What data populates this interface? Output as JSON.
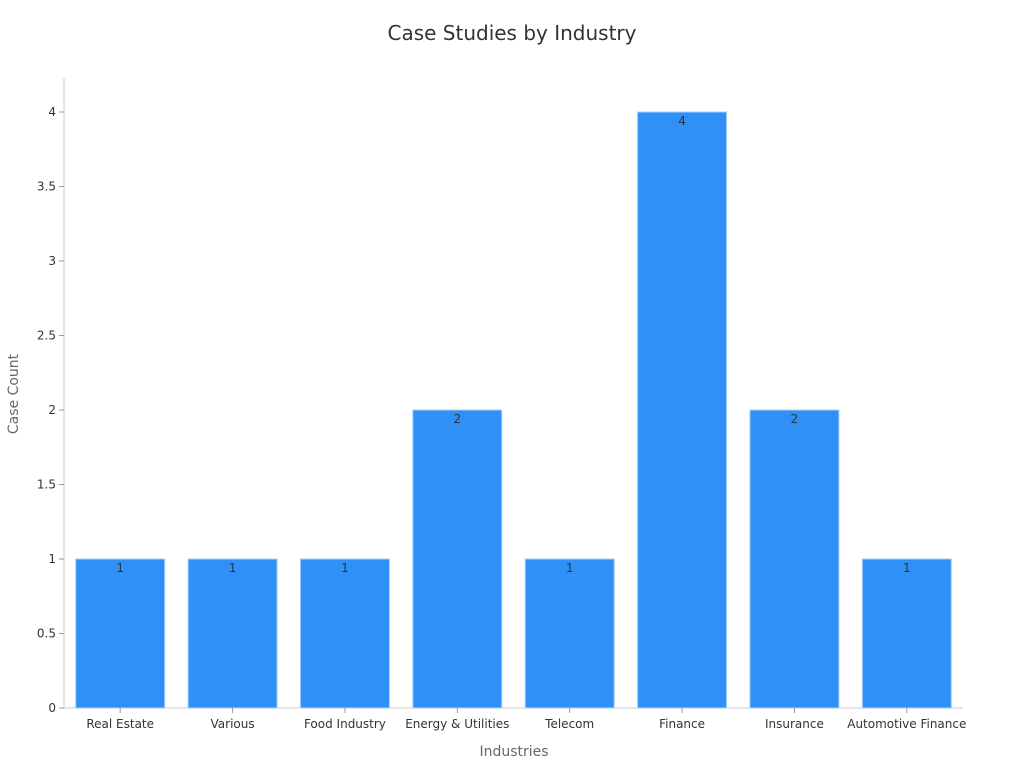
{
  "chart_data": {
    "type": "bar",
    "title": "Case Studies by Industry",
    "xlabel": "Industries",
    "ylabel": "Case Count",
    "categories": [
      "Real Estate",
      "Various",
      "Food Industry",
      "Energy & Utilities",
      "Telecom",
      "Finance",
      "Insurance",
      "Automotive Finance"
    ],
    "values": [
      1,
      1,
      1,
      2,
      1,
      4,
      2,
      1
    ],
    "ylim": [
      0,
      4.2
    ],
    "yticks": [
      "0",
      "0.5",
      "1",
      "1.5",
      "2",
      "2.5",
      "3",
      "3.5",
      "4"
    ],
    "grid": false,
    "data_labels": true,
    "colors": {
      "bar": "#2f91f8",
      "bar_edge": "#a9d0fb",
      "axis": "#cccccc",
      "text": "#333333",
      "label": "#666666"
    }
  }
}
